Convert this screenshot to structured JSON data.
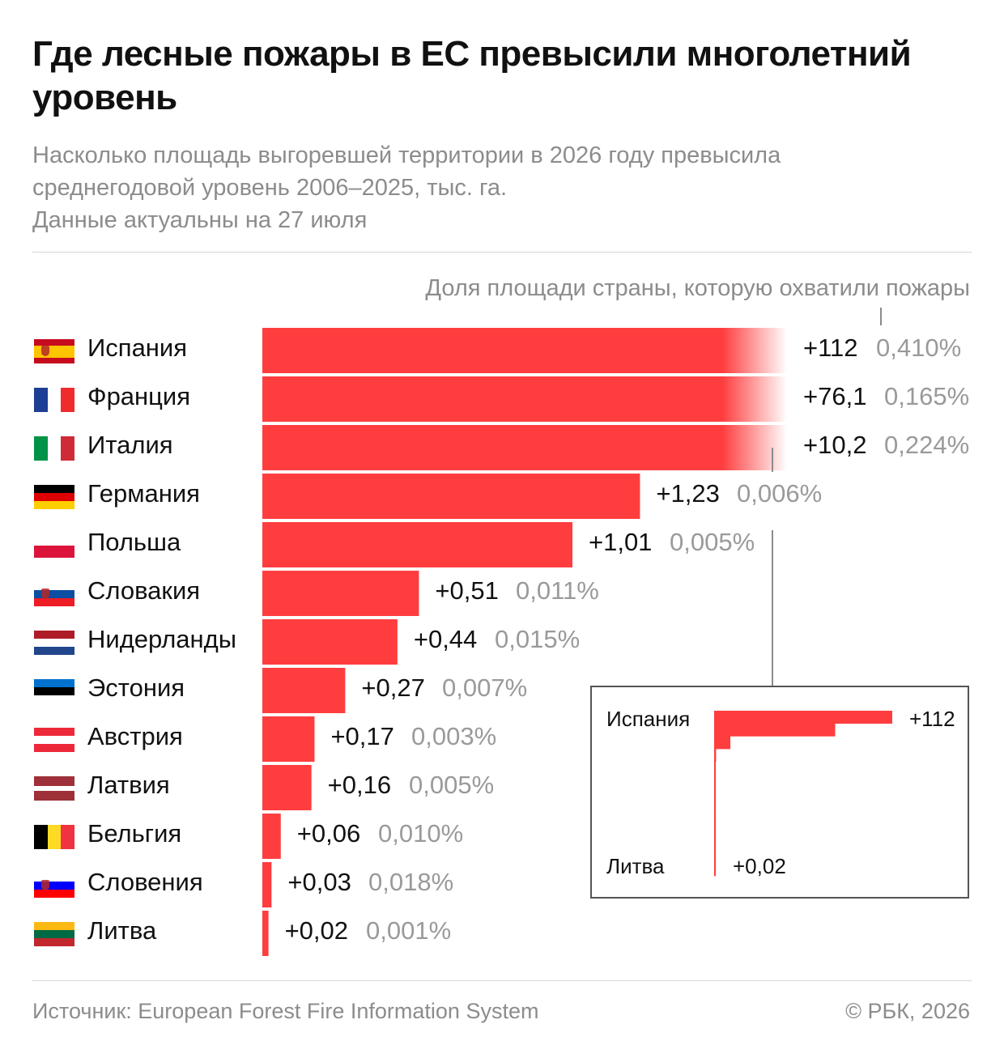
{
  "header": {
    "title": "Где лесные пожары в ЕС превысили многолетний уровень",
    "subtitle_line1": "Насколько площадь выгоревшей территории в 2026 году превысила",
    "subtitle_line2": "среднегодовой уровень 2006–2025, тыс. га.",
    "subtitle_line3": "Данные актуальны на 27 июля"
  },
  "share_caption": "Доля площади страны, которую охватили пожары",
  "colors": {
    "bar": "#ff3d3f",
    "text": "#111111",
    "muted": "#8c8c8c"
  },
  "chart_data": {
    "type": "bar",
    "orientation": "horizontal",
    "categories": [
      "Испания",
      "Франция",
      "Италия",
      "Германия",
      "Польша",
      "Словакия",
      "Нидерланды",
      "Эстония",
      "Австрия",
      "Латвия",
      "Бельгия",
      "Словения",
      "Литва"
    ],
    "values": [
      112,
      76.1,
      10.2,
      1.23,
      1.01,
      0.51,
      0.44,
      0.27,
      0.17,
      0.16,
      0.06,
      0.03,
      0.02
    ],
    "value_labels": [
      "+112",
      "+76,1",
      "+10,2",
      "+1,23",
      "+1,01",
      "+0,51",
      "+0,44",
      "+0,27",
      "+0,17",
      "+0,16",
      "+0,06",
      "+0,03",
      "+0,02"
    ],
    "share_labels": [
      "0,410%",
      "0,165%",
      "0,224%",
      "0,006%",
      "0,005%",
      "0,011%",
      "0,015%",
      "0,007%",
      "0,003%",
      "0,005%",
      "0,010%",
      "0,018%",
      "0,001%"
    ],
    "scale_max_main": 1.25,
    "truncated_bars": [
      "Испания",
      "Франция",
      "Италия"
    ],
    "inset": {
      "type": "bar",
      "orientation": "horizontal",
      "top_label": "Испания",
      "top_value_label": "+112",
      "bottom_label": "Литва",
      "bottom_value_label": "+0,02",
      "values": [
        112,
        76.1,
        10.2,
        1.23,
        1.01,
        0.51,
        0.44,
        0.27,
        0.17,
        0.16,
        0.06,
        0.03,
        0.02
      ]
    }
  },
  "flags": [
    {
      "dir": "h",
      "stripes": [
        "#c60b1e",
        "#ffc400",
        "#ffc400",
        "#c60b1e"
      ],
      "emblem": true
    },
    {
      "dir": "v",
      "stripes": [
        "#1c3f95",
        "#ffffff",
        "#ef2b2d"
      ]
    },
    {
      "dir": "v",
      "stripes": [
        "#009246",
        "#ffffff",
        "#ce2b37"
      ]
    },
    {
      "dir": "h",
      "stripes": [
        "#000000",
        "#dd0000",
        "#ffce00"
      ]
    },
    {
      "dir": "h",
      "stripes": [
        "#ffffff",
        "#dc143c"
      ],
      "border": true
    },
    {
      "dir": "h",
      "stripes": [
        "#ffffff",
        "#0b4ea2",
        "#ee1c25"
      ],
      "emblem": true
    },
    {
      "dir": "h",
      "stripes": [
        "#ae1c28",
        "#ffffff",
        "#21468b"
      ]
    },
    {
      "dir": "h",
      "stripes": [
        "#0072ce",
        "#000000",
        "#ffffff"
      ]
    },
    {
      "dir": "h",
      "stripes": [
        "#ed2939",
        "#ffffff",
        "#ed2939"
      ]
    },
    {
      "dir": "h",
      "stripes": [
        "#9e3039",
        "#9e3039",
        "#ffffff",
        "#9e3039",
        "#9e3039"
      ]
    },
    {
      "dir": "v",
      "stripes": [
        "#000000",
        "#fdda24",
        "#ef3340"
      ]
    },
    {
      "dir": "h",
      "stripes": [
        "#ffffff",
        "#0000ff",
        "#ff0000"
      ],
      "emblem": true
    },
    {
      "dir": "h",
      "stripes": [
        "#fdb913",
        "#006a44",
        "#c1272d"
      ]
    }
  ],
  "footer": {
    "source": "Источник: European Forest Fire Information System",
    "copyright": "© РБК, 2026"
  }
}
